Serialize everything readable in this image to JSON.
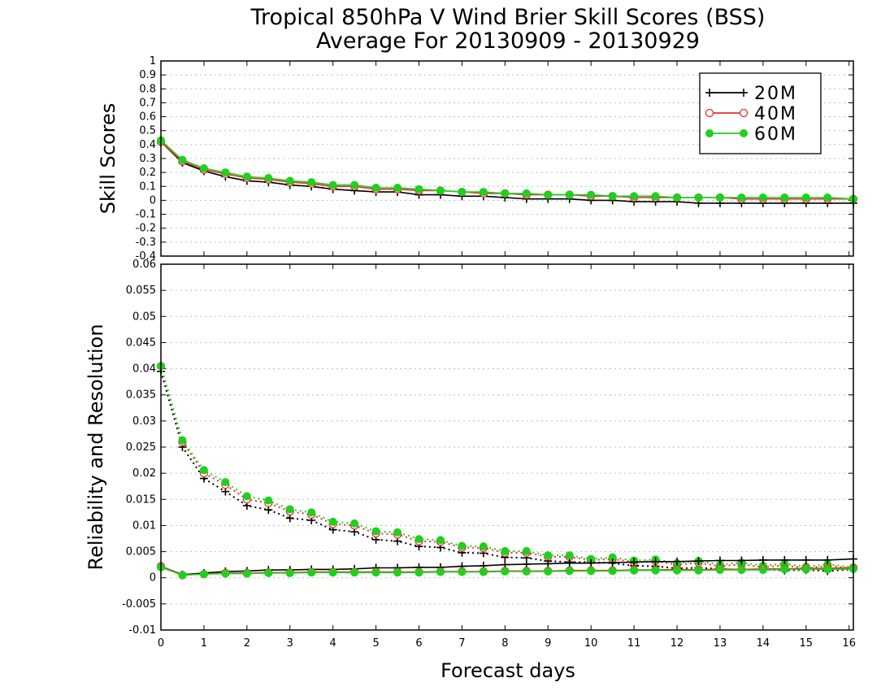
{
  "chart_data": {
    "title": "Tropical 850hPa V Wind Brier Skill Scores (BSS)",
    "subtitle": "Average For 20130909 - 20130929",
    "xlabel": "Forecast days",
    "x_ticks": [
      "0",
      "1",
      "2",
      "3",
      "4",
      "5",
      "6",
      "7",
      "8",
      "9",
      "10",
      "11",
      "12",
      "13",
      "14",
      "15",
      "16"
    ],
    "xlim": [
      0,
      16.1
    ],
    "colors": {
      "20M": "#000000",
      "40M": "#e8302c",
      "60M": "#1fd01f"
    },
    "legend": {
      "placement": "top-right of upper panel",
      "entries": [
        {
          "name": "20M",
          "marker": "plus"
        },
        {
          "name": "40M",
          "marker": "open-circle"
        },
        {
          "name": "60M",
          "marker": "filled-circle"
        }
      ]
    },
    "panels": [
      {
        "type": "line",
        "ylabel": "Skill Scores",
        "ylim": [
          -0.4,
          1
        ],
        "y_ticks": [
          "1",
          "0.9",
          "0.8",
          "0.7",
          "0.6",
          "0.5",
          "0.4",
          "0.3",
          "0.2",
          "0.1",
          "0",
          "-0.1",
          "-0.2",
          "-0.3",
          "-0.4"
        ],
        "grid": true,
        "x": [
          0,
          0.5,
          1,
          1.5,
          2,
          2.5,
          3,
          3.5,
          4,
          4.5,
          5,
          5.5,
          6,
          6.5,
          7,
          7.5,
          8,
          8.5,
          9,
          9.5,
          10,
          10.5,
          11,
          11.5,
          12,
          12.5,
          13,
          13.5,
          14,
          14.5,
          15,
          15.5,
          16.1
        ],
        "series": [
          {
            "name": "20M",
            "values": [
              0.42,
              0.27,
              0.21,
              0.17,
              0.14,
              0.13,
              0.11,
              0.1,
              0.08,
              0.07,
              0.06,
              0.06,
              0.04,
              0.04,
              0.03,
              0.03,
              0.02,
              0.01,
              0.01,
              0.01,
              0.0,
              0.0,
              -0.01,
              -0.01,
              -0.01,
              -0.02,
              -0.02,
              -0.02,
              -0.02,
              -0.02,
              -0.02,
              -0.02,
              -0.02
            ]
          },
          {
            "name": "40M",
            "values": [
              0.42,
              0.28,
              0.22,
              0.19,
              0.16,
              0.15,
              0.13,
              0.12,
              0.1,
              0.1,
              0.08,
              0.08,
              0.07,
              0.07,
              0.06,
              0.05,
              0.05,
              0.04,
              0.04,
              0.04,
              0.03,
              0.03,
              0.02,
              0.02,
              0.02,
              0.02,
              0.02,
              0.01,
              0.01,
              0.01,
              0.01,
              0.01,
              0.01
            ]
          },
          {
            "name": "60M",
            "values": [
              0.43,
              0.29,
              0.23,
              0.2,
              0.17,
              0.16,
              0.14,
              0.13,
              0.11,
              0.11,
              0.09,
              0.09,
              0.08,
              0.07,
              0.06,
              0.06,
              0.05,
              0.05,
              0.04,
              0.04,
              0.04,
              0.03,
              0.03,
              0.03,
              0.02,
              0.02,
              0.02,
              0.02,
              0.02,
              0.02,
              0.02,
              0.02,
              0.01
            ]
          }
        ]
      },
      {
        "type": "line",
        "ylabel": "Reliability and Resolution",
        "ylim": [
          -0.01,
          0.06
        ],
        "y_ticks": [
          "0.06",
          "0.055",
          "0.05",
          "0.045",
          "0.04",
          "0.035",
          "0.03",
          "0.025",
          "0.02",
          "0.015",
          "0.01",
          "0.005",
          "0",
          "-0.005",
          "-0.01"
        ],
        "grid": true,
        "x": [
          0,
          0.5,
          1,
          1.5,
          2,
          2.5,
          3,
          3.5,
          4,
          4.5,
          5,
          5.5,
          6,
          6.5,
          7,
          7.5,
          8,
          8.5,
          9,
          9.5,
          10,
          10.5,
          11,
          11.5,
          12,
          12.5,
          13,
          13.5,
          14,
          14.5,
          15,
          15.5,
          16.1
        ],
        "series": [
          {
            "name": "20M",
            "line": "dotted",
            "values": [
              0.0395,
              0.025,
              0.019,
              0.0165,
              0.0138,
              0.013,
              0.0114,
              0.011,
              0.0092,
              0.0088,
              0.0073,
              0.007,
              0.006,
              0.0058,
              0.0048,
              0.0047,
              0.0039,
              0.0038,
              0.0032,
              0.003,
              0.003,
              0.0028,
              0.0023,
              0.0022,
              0.0018,
              0.0019,
              0.0017,
              0.0015,
              0.0016,
              0.0014,
              0.0015,
              0.0013,
              0.0016
            ]
          },
          {
            "name": "40M",
            "line": "dotted",
            "values": [
              0.0405,
              0.026,
              0.02,
              0.0178,
              0.015,
              0.0143,
              0.0127,
              0.0121,
              0.0103,
              0.01,
              0.0085,
              0.0083,
              0.007,
              0.0069,
              0.0058,
              0.0057,
              0.0048,
              0.0048,
              0.004,
              0.004,
              0.0034,
              0.0036,
              0.003,
              0.0032,
              0.0025,
              0.0029,
              0.0022,
              0.0026,
              0.002,
              0.0024,
              0.0018,
              0.0023,
              0.0018
            ]
          },
          {
            "name": "60M",
            "line": "dotted",
            "values": [
              0.0405,
              0.0263,
              0.0206,
              0.0183,
              0.0156,
              0.0148,
              0.0131,
              0.0125,
              0.0107,
              0.0104,
              0.0089,
              0.0087,
              0.0074,
              0.0072,
              0.0061,
              0.006,
              0.0051,
              0.0051,
              0.0043,
              0.0043,
              0.0036,
              0.0039,
              0.0033,
              0.0035,
              0.0028,
              0.0032,
              0.0025,
              0.0029,
              0.0023,
              0.0027,
              0.0021,
              0.0026,
              0.002
            ]
          },
          {
            "name": "20M",
            "line": "solid",
            "values": [
              0.0022,
              0.0006,
              0.0009,
              0.0012,
              0.0013,
              0.0015,
              0.0015,
              0.0016,
              0.0016,
              0.0017,
              0.0019,
              0.0019,
              0.002,
              0.002,
              0.0022,
              0.0023,
              0.0025,
              0.0026,
              0.0027,
              0.0028,
              0.0028,
              0.0029,
              0.003,
              0.0031,
              0.0031,
              0.0032,
              0.0033,
              0.0033,
              0.0034,
              0.0034,
              0.0034,
              0.0034,
              0.0036
            ]
          },
          {
            "name": "40M",
            "line": "solid",
            "values": [
              0.0022,
              0.0005,
              0.0007,
              0.0009,
              0.0009,
              0.001,
              0.001,
              0.0011,
              0.0011,
              0.0011,
              0.0011,
              0.0011,
              0.0011,
              0.0012,
              0.0012,
              0.0012,
              0.0013,
              0.0013,
              0.0013,
              0.0014,
              0.0014,
              0.0014,
              0.0015,
              0.0015,
              0.0016,
              0.0015,
              0.0017,
              0.0016,
              0.0017,
              0.0017,
              0.0018,
              0.0018,
              0.0019
            ]
          },
          {
            "name": "60M",
            "line": "solid",
            "values": [
              0.002,
              0.0005,
              0.0007,
              0.0008,
              0.0008,
              0.0009,
              0.0009,
              0.001,
              0.001,
              0.001,
              0.001,
              0.001,
              0.001,
              0.0011,
              0.0011,
              0.0011,
              0.0012,
              0.0012,
              0.0012,
              0.0013,
              0.0013,
              0.0013,
              0.0014,
              0.0014,
              0.0014,
              0.0014,
              0.0015,
              0.0015,
              0.0015,
              0.0016,
              0.0016,
              0.0016,
              0.0017
            ]
          }
        ]
      }
    ]
  }
}
